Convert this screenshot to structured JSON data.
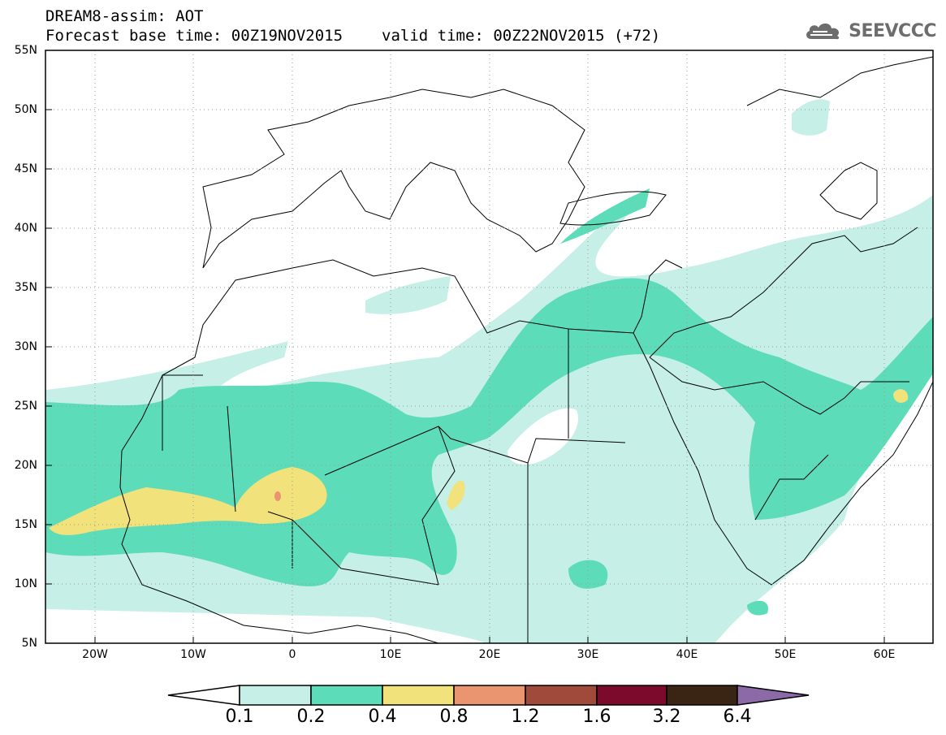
{
  "header": {
    "title": "DREAM8-assim: AOT",
    "base_time": "Forecast base time: 00Z19NOV2015",
    "valid_time": "valid time: 00Z22NOV2015 (+72)"
  },
  "logo": {
    "text": "SEEVCCC",
    "icon": "cloud-icon",
    "color": "#6d6d6d"
  },
  "map": {
    "lat_ticks": [
      "55N",
      "50N",
      "45N",
      "40N",
      "35N",
      "30N",
      "25N",
      "20N",
      "15N",
      "10N",
      "5N"
    ],
    "lon_ticks": [
      "20W",
      "10W",
      "0",
      "10E",
      "20E",
      "30E",
      "40E",
      "50E",
      "60E"
    ],
    "lon_range": [
      -25,
      65
    ],
    "lat_range": [
      5,
      55
    ],
    "grid": "dotted"
  },
  "colorbar": {
    "labels": [
      "0.1",
      "0.2",
      "0.4",
      "0.8",
      "1.2",
      "1.6",
      "3.2",
      "6.4"
    ],
    "colors": [
      "#ffffff",
      "#c5efe7",
      "#5cdcb8",
      "#f2e27c",
      "#ea9470",
      "#a04a3c",
      "#7c0a2c",
      "#3a2414",
      "#8c6aa8"
    ],
    "extend": "both"
  }
}
